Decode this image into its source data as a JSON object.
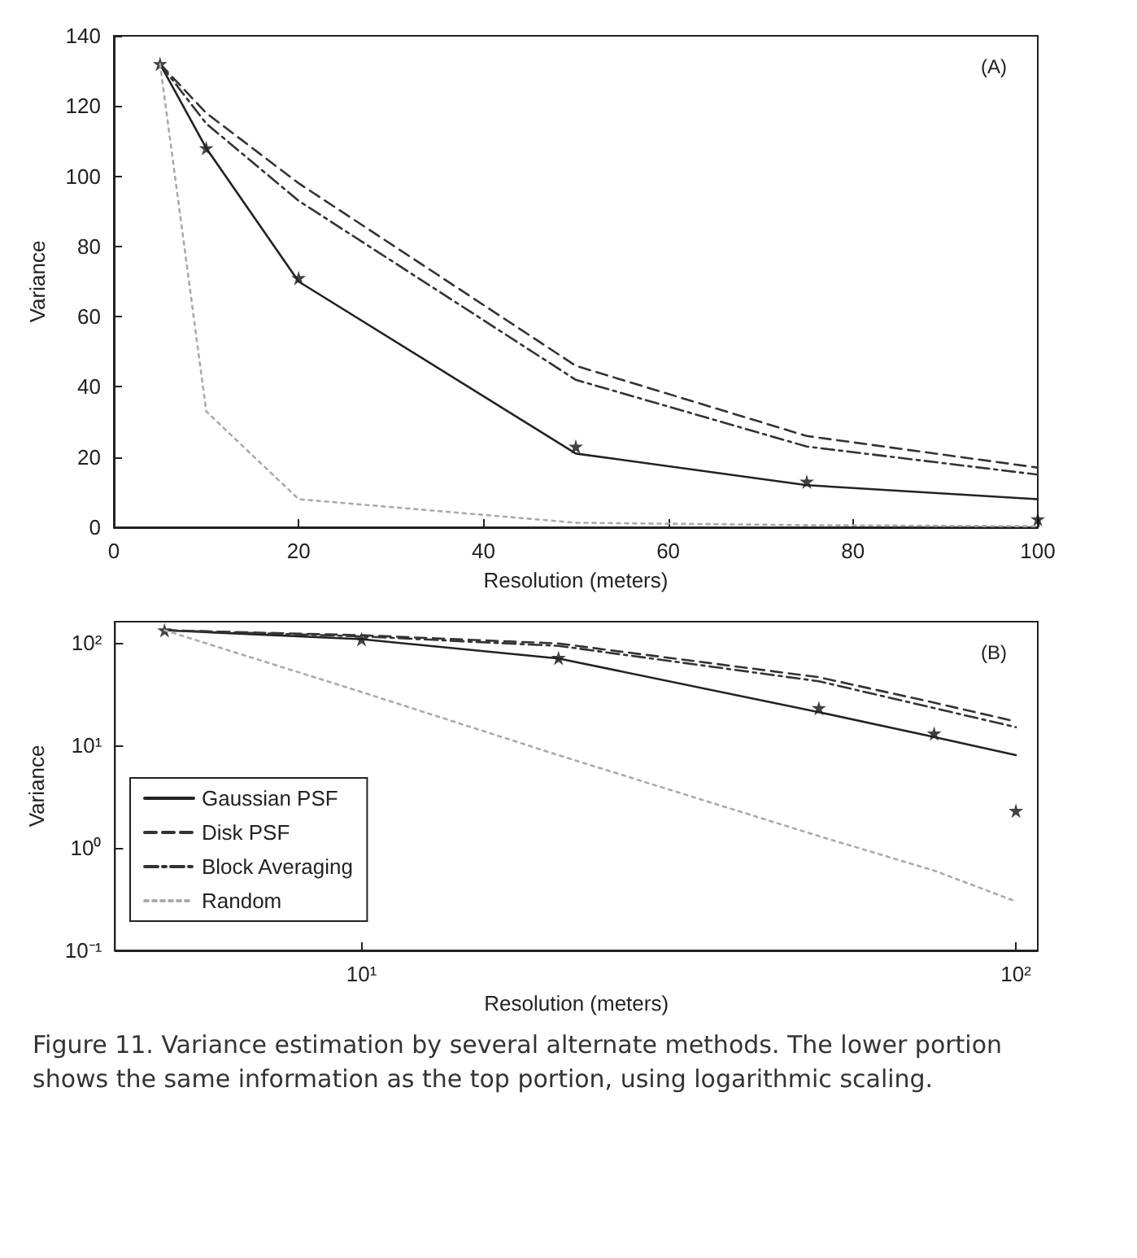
{
  "chart_data": [
    {
      "type": "line",
      "title": "(A)",
      "xlabel": "Resolution (meters)",
      "ylabel": "Variance",
      "x": [
        5,
        10,
        20,
        50,
        75,
        100
      ],
      "series": [
        {
          "color": "#222222",
          "line_style": "solid",
          "marker": "none",
          "values": [
            132,
            108,
            70,
            21,
            12,
            8
          ]
        },
        {
          "color": "#333333",
          "line_style": "dashed",
          "marker": "none",
          "values": [
            132,
            118,
            98,
            46,
            26,
            17
          ]
        },
        {
          "color": "#333333",
          "line_style": "dashdot",
          "marker": "none",
          "values": [
            132,
            115,
            93,
            42,
            23,
            15
          ]
        },
        {
          "color": "#aaaaaa",
          "line_style": "dotted",
          "marker": "none",
          "values": [
            132,
            33,
            8,
            1.3,
            0.6,
            0.3
          ]
        },
        {
          "type": "scatter",
          "color": "#111111",
          "marker": "star",
          "values": [
            132,
            108,
            71,
            23,
            13,
            2.3
          ]
        }
      ],
      "xlim": [
        0,
        100
      ],
      "xticks": [
        0,
        20,
        40,
        60,
        80,
        100
      ],
      "ylim": [
        0,
        140
      ],
      "yticks": [
        0,
        20,
        40,
        60,
        80,
        100,
        120,
        140
      ],
      "grid": false,
      "legend": false
    },
    {
      "type": "line",
      "title": "(B)",
      "xlabel": "Resolution (meters)",
      "ylabel": "Variance",
      "x": [
        5,
        10,
        20,
        50,
        75,
        100
      ],
      "log": "xy",
      "series": [
        {
          "name": "Gaussian PSF",
          "color": "#222222",
          "line_style": "solid",
          "marker": "none",
          "values": [
            132,
            108,
            70,
            21,
            12,
            8
          ]
        },
        {
          "name": "Disk PSF",
          "color": "#333333",
          "line_style": "dashed",
          "marker": "none",
          "values": [
            132,
            118,
            98,
            46,
            26,
            17
          ]
        },
        {
          "name": "Block Averaging",
          "color": "#333333",
          "line_style": "dashdot",
          "marker": "none",
          "values": [
            132,
            115,
            93,
            42,
            23,
            15
          ]
        },
        {
          "name": "Random",
          "color": "#aaaaaa",
          "line_style": "dotted",
          "marker": "none",
          "values": [
            132,
            33,
            8,
            1.3,
            0.6,
            0.3
          ]
        },
        {
          "type": "scatter",
          "color": "#111111",
          "marker": "star",
          "values": [
            132,
            108,
            71,
            23,
            13,
            2.3
          ]
        }
      ],
      "xlim": [
        4.2,
        108
      ],
      "xticks": [
        {
          "value": 10,
          "label": "10¹"
        },
        {
          "value": 100,
          "label": "10²"
        }
      ],
      "ylim": [
        0.1,
        160
      ],
      "yticks": [
        {
          "value": 0.1,
          "label": "10⁻¹"
        },
        {
          "value": 1,
          "label": "10⁰"
        },
        {
          "value": 10,
          "label": "10¹"
        },
        {
          "value": 100,
          "label": "10²"
        }
      ],
      "grid": false,
      "legend": "bottom left",
      "annotations": [
        "Figure 11. Variance estimation by several alternate methods. The lower portion shows the same information as the top portion, using logarithmic scaling."
      ]
    }
  ]
}
